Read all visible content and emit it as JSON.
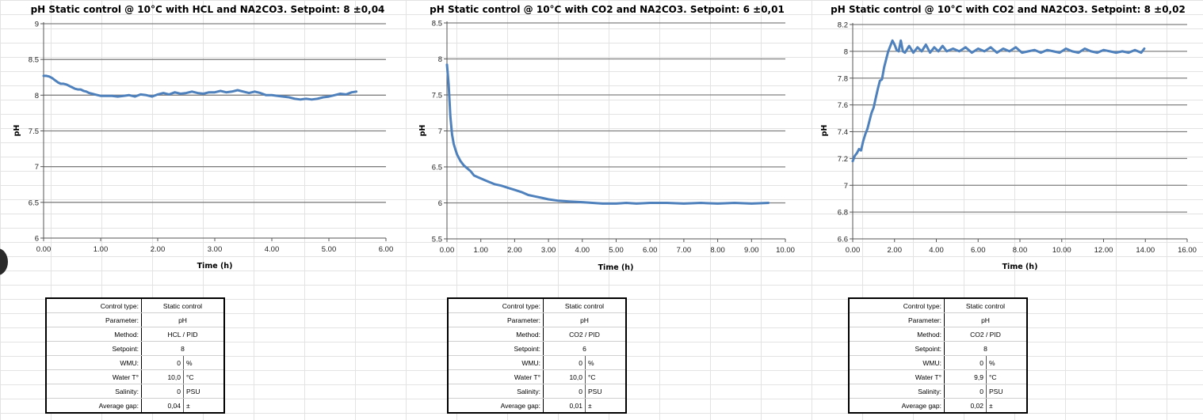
{
  "line_color": "#4f81bd",
  "grid_color": "#808080",
  "chart_data": [
    {
      "type": "line",
      "title": "pH Static control @ 10°C with HCL and NA2CO3. Setpoint: 8 ±0,04",
      "xlabel": "Time (h)",
      "ylabel": "pH",
      "xlim": [
        0,
        6
      ],
      "ylim": [
        6,
        9
      ],
      "xticks": [
        "0.00",
        "1.00",
        "2.00",
        "3.00",
        "4.00",
        "5.00",
        "6.00"
      ],
      "yticks": [
        "6",
        "6.5",
        "7",
        "7.5",
        "8",
        "8.5",
        "9"
      ],
      "grid": "horizontal",
      "series": [
        {
          "x": [
            0,
            0.05,
            0.1,
            0.15,
            0.2,
            0.25,
            0.3,
            0.35,
            0.4,
            0.45,
            0.5,
            0.55,
            0.6,
            0.65,
            0.7,
            0.75,
            0.8,
            0.85,
            0.9,
            0.95,
            1.0,
            1.1,
            1.2,
            1.3,
            1.4,
            1.5,
            1.6,
            1.7,
            1.8,
            1.9,
            2.0,
            2.1,
            2.2,
            2.3,
            2.4,
            2.5,
            2.6,
            2.7,
            2.8,
            2.9,
            3.0,
            3.1,
            3.2,
            3.3,
            3.4,
            3.5,
            3.6,
            3.7,
            3.8,
            3.9,
            4.0,
            4.1,
            4.2,
            4.3,
            4.4,
            4.5,
            4.6,
            4.7,
            4.8,
            4.9,
            5.0,
            5.1,
            5.2,
            5.3,
            5.4,
            5.48
          ],
          "y": [
            8.27,
            8.27,
            8.26,
            8.24,
            8.21,
            8.18,
            8.16,
            8.16,
            8.15,
            8.13,
            8.11,
            8.09,
            8.08,
            8.08,
            8.06,
            8.05,
            8.03,
            8.02,
            8.01,
            8.0,
            7.99,
            7.99,
            7.99,
            7.98,
            7.99,
            8.0,
            7.98,
            8.01,
            8.0,
            7.98,
            8.01,
            8.03,
            8.01,
            8.04,
            8.02,
            8.03,
            8.05,
            8.03,
            8.02,
            8.04,
            8.04,
            8.06,
            8.04,
            8.05,
            8.07,
            8.05,
            8.03,
            8.05,
            8.03,
            8.0,
            8.0,
            7.99,
            7.98,
            7.97,
            7.95,
            7.94,
            7.95,
            7.94,
            7.95,
            7.97,
            7.98,
            8.0,
            8.02,
            8.01,
            8.04,
            8.05
          ]
        }
      ]
    },
    {
      "type": "line",
      "title": "pH Static control @ 10°C with CO2 and NA2CO3. Setpoint: 6 ±0,01",
      "xlabel": "Time (h)",
      "ylabel": "pH",
      "xlim": [
        0,
        10
      ],
      "ylim": [
        5.5,
        8.5
      ],
      "xticks": [
        "0.00",
        "1.00",
        "2.00",
        "3.00",
        "4.00",
        "5.00",
        "6.00",
        "7.00",
        "8.00",
        "9.00",
        "10.00"
      ],
      "yticks": [
        "5.5",
        "6",
        "6.5",
        "7",
        "7.5",
        "8",
        "8.5"
      ],
      "grid": "horizontal",
      "series": [
        {
          "x": [
            0,
            0.05,
            0.1,
            0.15,
            0.2,
            0.25,
            0.3,
            0.4,
            0.5,
            0.6,
            0.7,
            0.8,
            0.9,
            1.0,
            1.2,
            1.4,
            1.6,
            1.8,
            2.0,
            2.2,
            2.4,
            2.6,
            2.8,
            3.0,
            3.3,
            3.6,
            4.0,
            4.3,
            4.6,
            5.0,
            5.3,
            5.6,
            6.0,
            6.5,
            7.0,
            7.5,
            8.0,
            8.5,
            9.0,
            9.5
          ],
          "y": [
            7.92,
            7.65,
            7.2,
            6.95,
            6.82,
            6.74,
            6.67,
            6.58,
            6.52,
            6.48,
            6.44,
            6.38,
            6.36,
            6.34,
            6.3,
            6.26,
            6.24,
            6.21,
            6.18,
            6.15,
            6.11,
            6.09,
            6.07,
            6.05,
            6.03,
            6.02,
            6.01,
            6.0,
            5.99,
            5.99,
            6.0,
            5.99,
            6.0,
            6.0,
            5.99,
            6.0,
            5.99,
            6.0,
            5.99,
            6.0
          ]
        }
      ]
    },
    {
      "type": "line",
      "title": "pH Static control @ 10°C with CO2 and NA2CO3. Setpoint: 8 ±0,02",
      "xlabel": "Time (h)",
      "ylabel": "pH",
      "xlim": [
        0,
        16
      ],
      "ylim": [
        6.6,
        8.2
      ],
      "xticks": [
        "0.00",
        "2.00",
        "4.00",
        "6.00",
        "8.00",
        "10.00",
        "12.00",
        "14.00",
        "16.00"
      ],
      "yticks": [
        "6.6",
        "6.8",
        "7",
        "7.2",
        "7.4",
        "7.6",
        "7.8",
        "8",
        "8.2"
      ],
      "grid": "horizontal",
      "series": [
        {
          "x": [
            0,
            0.1,
            0.2,
            0.3,
            0.4,
            0.5,
            0.6,
            0.7,
            0.8,
            0.9,
            1.0,
            1.1,
            1.2,
            1.3,
            1.4,
            1.5,
            1.6,
            1.7,
            1.8,
            1.9,
            2.0,
            2.1,
            2.2,
            2.3,
            2.4,
            2.5,
            2.7,
            2.9,
            3.1,
            3.3,
            3.5,
            3.7,
            3.9,
            4.1,
            4.3,
            4.5,
            4.8,
            5.1,
            5.4,
            5.7,
            6.0,
            6.3,
            6.6,
            6.9,
            7.2,
            7.5,
            7.8,
            8.1,
            8.4,
            8.7,
            9.0,
            9.3,
            9.6,
            9.9,
            10.2,
            10.5,
            10.8,
            11.1,
            11.4,
            11.7,
            12.0,
            12.3,
            12.6,
            12.9,
            13.2,
            13.5,
            13.8,
            13.95
          ],
          "y": [
            7.18,
            7.22,
            7.24,
            7.27,
            7.26,
            7.33,
            7.38,
            7.42,
            7.48,
            7.54,
            7.58,
            7.65,
            7.72,
            7.78,
            7.79,
            7.88,
            7.94,
            8.0,
            8.04,
            8.08,
            8.05,
            8.01,
            8.0,
            8.08,
            8.0,
            7.99,
            8.04,
            7.99,
            8.03,
            8.0,
            8.05,
            7.99,
            8.03,
            8.0,
            8.04,
            8.0,
            8.02,
            8.0,
            8.03,
            7.99,
            8.02,
            8.0,
            8.03,
            7.99,
            8.02,
            8.0,
            8.03,
            7.99,
            8.0,
            8.01,
            7.99,
            8.01,
            8.0,
            7.99,
            8.02,
            8.0,
            7.99,
            8.02,
            8.0,
            7.99,
            8.01,
            8.0,
            7.99,
            8.0,
            7.99,
            8.01,
            7.99,
            8.02
          ]
        }
      ]
    }
  ],
  "tables": [
    {
      "control_type_label": "Control type:",
      "control_type_value": "Static control",
      "parameter_label": "Parameter:",
      "parameter_value": "pH",
      "method_label": "Method:",
      "method_value": "HCL / PID",
      "setpoint_label": "Setpoint:",
      "setpoint_value": "8",
      "wmu_label": "WMU:",
      "wmu_value": "0",
      "wmu_unit": "%",
      "water_label": "Water T°",
      "water_value": "10,0",
      "water_unit": "°C",
      "salinity_label": "Salinity:",
      "salinity_value": "0",
      "salinity_unit": "PSU",
      "gap_label": "Average gap:",
      "gap_value": "0,04",
      "gap_unit": "±"
    },
    {
      "control_type_label": "Control type:",
      "control_type_value": "Static control",
      "parameter_label": "Parameter:",
      "parameter_value": "pH",
      "method_label": "Method:",
      "method_value": "CO2 / PID",
      "setpoint_label": "Setpoint:",
      "setpoint_value": "6",
      "wmu_label": "WMU:",
      "wmu_value": "0",
      "wmu_unit": "%",
      "water_label": "Water T°",
      "water_value": "10,0",
      "water_unit": "°C",
      "salinity_label": "Salinity:",
      "salinity_value": "0",
      "salinity_unit": "PSU",
      "gap_label": "Average gap:",
      "gap_value": "0,01",
      "gap_unit": "±"
    },
    {
      "control_type_label": "Control type:",
      "control_type_value": "Static control",
      "parameter_label": "Parameter:",
      "parameter_value": "pH",
      "method_label": "Method:",
      "method_value": "CO2 / PID",
      "setpoint_label": "Setpoint:",
      "setpoint_value": "8",
      "wmu_label": "WMU:",
      "wmu_value": "0",
      "wmu_unit": "%",
      "water_label": "Water T°",
      "water_value": "9,9",
      "water_unit": "°C",
      "salinity_label": "Salinity:",
      "salinity_value": "0",
      "salinity_unit": "PSU",
      "gap_label": "Average gap:",
      "gap_value": "0,02",
      "gap_unit": "±"
    }
  ]
}
